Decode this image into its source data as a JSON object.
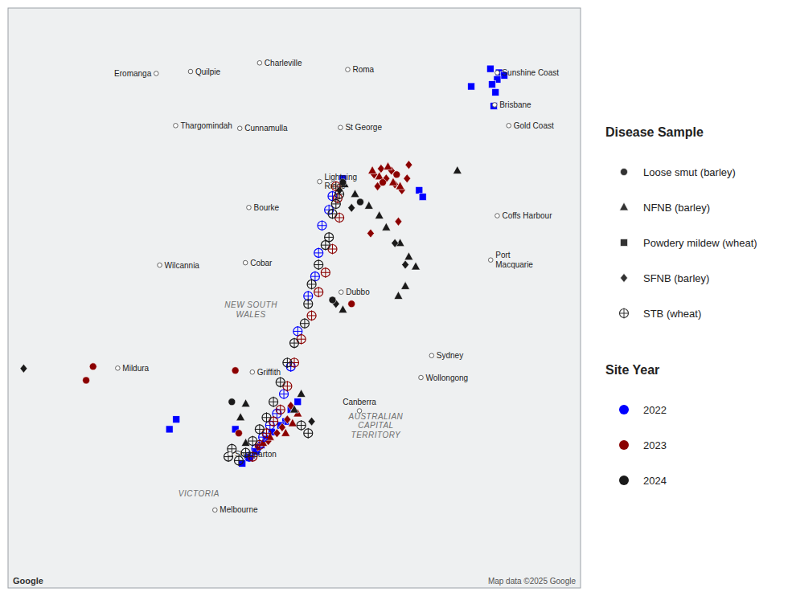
{
  "chart_data": {
    "type": "scatter",
    "xlim": [
      139.0,
      155.5
    ],
    "ylim": [
      -39.8,
      -25.0
    ],
    "tick_labels": false,
    "grid": false,
    "series": [
      {
        "color": "#0000FF",
        "marker": "square",
        "x": [
          152.9,
          153.15,
          153.3,
          153.1,
          152.95,
          153.05,
          153.0,
          152.35,
          148.65,
          150.85,
          150.95,
          147.35,
          147.15,
          147.0,
          146.85,
          146.6,
          146.45,
          146.3,
          146.15,
          145.95,
          145.75,
          145.55,
          143.85,
          143.65
        ],
        "y": [
          -26.55,
          -26.65,
          -26.72,
          -26.82,
          -26.95,
          -27.15,
          -27.5,
          -27.0,
          -29.35,
          -29.65,
          -29.82,
          -35.05,
          -35.25,
          -35.55,
          -35.65,
          -35.82,
          -36.0,
          -36.15,
          -36.32,
          -36.48,
          -36.62,
          -35.75,
          -35.5,
          -35.75
        ]
      },
      {
        "color": "#8B0000",
        "marker": "diamond",
        "x": [
          149.55,
          149.75,
          149.9,
          150.05,
          150.15,
          150.35,
          149.65,
          150.5,
          150.55,
          150.25,
          149.45,
          147.15,
          147.05,
          146.9,
          146.75,
          146.5,
          146.2
        ],
        "y": [
          -29.25,
          -29.1,
          -29.35,
          -29.15,
          -29.5,
          -29.65,
          -29.55,
          -29.35,
          -29.0,
          -30.45,
          -30.75,
          -35.15,
          -35.5,
          -35.7,
          -35.85,
          -36.05,
          -36.2
        ]
      },
      {
        "color": "#8B0000",
        "marker": "triangle",
        "x": [
          149.5,
          149.7,
          149.95,
          150.1,
          150.3,
          147.35,
          147.2,
          147.0,
          146.35,
          146.55
        ],
        "y": [
          -29.15,
          -29.3,
          -29.05,
          -29.45,
          -29.55,
          -35.35,
          -35.6,
          -35.85,
          -36.1,
          -35.95
        ]
      },
      {
        "color": "#8B0000",
        "marker": "circle",
        "x": [
          149.8,
          150.2,
          148.9,
          145.55,
          145.65,
          141.45,
          141.25
        ],
        "y": [
          -29.45,
          -29.25,
          -32.55,
          -34.25,
          -35.85,
          -34.15,
          -34.5
        ]
      },
      {
        "color": "#1a1a1a",
        "marker": "triangle",
        "x": [
          148.7,
          149.0,
          149.4,
          149.7,
          149.9,
          150.3,
          150.55,
          150.75,
          150.45,
          150.25,
          148.65,
          147.45,
          147.25,
          145.85,
          145.7,
          145.85,
          151.95
        ],
        "y": [
          -29.5,
          -29.75,
          -30.05,
          -30.3,
          -30.6,
          -31.0,
          -31.35,
          -31.6,
          -32.1,
          -32.35,
          -32.7,
          -34.85,
          -35.25,
          -35.1,
          -35.45,
          -36.1,
          -29.15
        ]
      },
      {
        "color": "#1a1a1a",
        "marker": "diamond",
        "x": [
          148.55,
          148.9,
          150.15,
          150.45,
          148.45,
          147.75,
          139.45
        ],
        "y": [
          -29.65,
          -30.1,
          -31.0,
          -31.55,
          -32.55,
          -35.55,
          -34.2
        ]
      },
      {
        "color": "#1a1a1a",
        "marker": "circle",
        "x": [
          148.65,
          149.15,
          148.35,
          145.45
        ],
        "y": [
          -29.45,
          -29.95,
          -32.45,
          -35.05
        ]
      },
      {
        "color": "#0000FF",
        "marker": "circle-plus",
        "x": [
          148.35,
          148.25,
          148.05,
          147.95,
          147.85,
          147.65,
          147.35,
          147.15,
          146.95,
          146.75,
          146.55,
          146.35,
          146.15,
          145.95
        ],
        "y": [
          -29.8,
          -30.15,
          -30.55,
          -31.25,
          -31.85,
          -32.35,
          -33.25,
          -34.15,
          -34.85,
          -35.35,
          -35.65,
          -35.95,
          -36.25,
          -36.45
        ]
      },
      {
        "color": "#8B0000",
        "marker": "circle-plus",
        "x": [
          148.45,
          148.5,
          148.55,
          148.35,
          148.15,
          147.95,
          147.75,
          147.45,
          147.25,
          147.05,
          146.85,
          146.65,
          146.45,
          146.25,
          146.05
        ],
        "y": [
          -29.55,
          -29.85,
          -30.35,
          -31.15,
          -31.75,
          -32.25,
          -32.85,
          -33.45,
          -34.05,
          -34.65,
          -35.25,
          -35.55,
          -35.85,
          -36.15,
          -36.45
        ]
      },
      {
        "color": "#1a1a1a",
        "marker": "circle-plus",
        "x": [
          148.55,
          148.45,
          148.35,
          148.25,
          148.15,
          147.95,
          147.75,
          147.65,
          147.55,
          147.25,
          147.05,
          146.85,
          146.65,
          146.45,
          146.25,
          146.05,
          145.85,
          145.65,
          147.45,
          147.65,
          145.45,
          145.35
        ],
        "y": [
          -29.75,
          -30.0,
          -30.25,
          -30.85,
          -31.05,
          -31.55,
          -32.05,
          -32.55,
          -33.05,
          -33.55,
          -34.05,
          -34.55,
          -35.05,
          -35.45,
          -35.75,
          -36.05,
          -36.35,
          -36.55,
          -35.65,
          -35.85,
          -36.25,
          -36.45
        ]
      }
    ],
    "legends": [
      {
        "title": "Disease Sample",
        "entries": [
          {
            "name": "Loose smut (barley)",
            "marker": "circle"
          },
          {
            "name": "NFNB (barley)",
            "marker": "triangle"
          },
          {
            "name": "Powdery mildew (wheat)",
            "marker": "square"
          },
          {
            "name": "SFNB (barley)",
            "marker": "diamond"
          },
          {
            "name": "STB (wheat)",
            "marker": "circle-plus"
          }
        ]
      },
      {
        "title": "Site Year",
        "entries": [
          {
            "name": "2022",
            "color": "#0000FF"
          },
          {
            "name": "2023",
            "color": "#8B0000"
          },
          {
            "name": "2024",
            "color": "#1a1a1a"
          }
        ]
      }
    ],
    "cities": [
      {
        "name": "Brisbane",
        "x": 153.025,
        "y": -27.47
      },
      {
        "name": "Sydney",
        "x": 151.209,
        "y": -33.87
      },
      {
        "name": "Melbourne",
        "x": 144.963,
        "y": -37.81
      },
      {
        "name": "Gold Coast",
        "x": 153.431,
        "y": -28.0
      },
      {
        "name": "Sunshine Coast",
        "x": 153.1,
        "y": -26.65
      },
      {
        "name": "Wollongong",
        "x": 150.9,
        "y": -34.43
      },
      {
        "name": "Canberra",
        "x": 149.128,
        "y": -35.28
      },
      {
        "name": "Coffs Harbour",
        "x": 153.1,
        "y": -30.3
      },
      {
        "name": "Port\nMacquarie",
        "x": 152.91,
        "y": -31.43
      },
      {
        "name": "Dubbo",
        "x": 148.6,
        "y": -32.25
      },
      {
        "name": "Griffith",
        "x": 146.04,
        "y": -34.29
      },
      {
        "name": "Bourke",
        "x": 145.94,
        "y": -30.09
      },
      {
        "name": "Cobar",
        "x": 145.84,
        "y": -31.5
      },
      {
        "name": "Wilcannia",
        "x": 143.37,
        "y": -31.56
      },
      {
        "name": "Mildura",
        "x": 142.16,
        "y": -34.19
      },
      {
        "name": "Shepparton",
        "x": 145.4,
        "y": -36.38
      },
      {
        "name": "Lightning\nRidge",
        "x": 147.98,
        "y": -29.43
      },
      {
        "name": "St George",
        "x": 148.58,
        "y": -28.05
      },
      {
        "name": "Charleville",
        "x": 146.25,
        "y": -26.4
      },
      {
        "name": "Roma",
        "x": 148.79,
        "y": -26.57
      },
      {
        "name": "Cunnamulla",
        "x": 145.68,
        "y": -28.07
      },
      {
        "name": "Thargomindah",
        "x": 143.83,
        "y": -28.0
      },
      {
        "name": "Eromanga",
        "x": 143.27,
        "y": -26.67
      },
      {
        "name": "Quilpie",
        "x": 144.26,
        "y": -26.62
      }
    ],
    "region_labels": [
      {
        "text": "NEW SOUTH\nWALES",
        "x": 146.0,
        "y": -32.7
      },
      {
        "text": "VICTORIA",
        "x": 144.5,
        "y": -37.4
      },
      {
        "text": "AUSTRALIAN\nCAPITAL\nTERRITORY",
        "x": 149.6,
        "y": -35.65
      }
    ],
    "notes": [
      "Google",
      "Map data ©2025 Google"
    ]
  }
}
